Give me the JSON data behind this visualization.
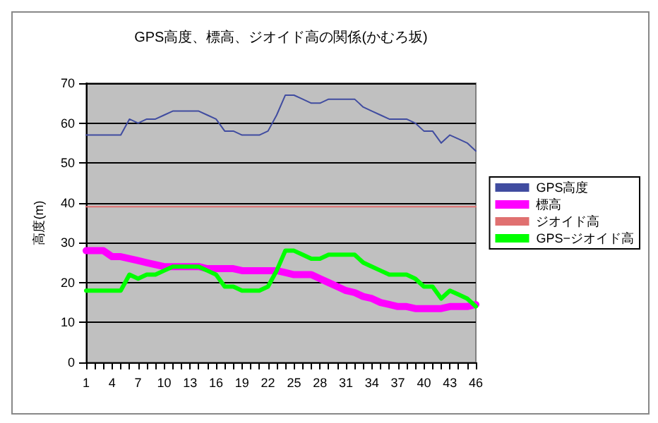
{
  "chart_data": {
    "type": "line",
    "title": "GPS高度、標高、ジオイド高の関係(かむろ坂)",
    "ylabel": "高度(m)",
    "categories": [
      "1",
      null,
      null,
      "4",
      null,
      null,
      "7",
      null,
      null,
      "10",
      null,
      null,
      "13",
      null,
      null,
      "16",
      null,
      null,
      "19",
      null,
      null,
      "22",
      null,
      null,
      "25",
      null,
      null,
      "28",
      null,
      null,
      "31",
      null,
      null,
      "34",
      null,
      null,
      "37",
      null,
      null,
      "40",
      null,
      null,
      "43",
      null,
      null,
      "46"
    ],
    "series": [
      {
        "name": "GPS高度",
        "color": "#404ca0",
        "values": [
          57,
          57,
          57,
          57,
          57,
          61,
          60,
          61,
          61,
          62,
          63,
          63,
          63,
          63,
          62,
          61,
          58,
          58,
          57,
          57,
          57,
          58,
          62,
          67,
          67,
          66,
          65,
          65,
          66,
          66,
          66,
          66,
          64,
          63,
          62,
          61,
          61,
          61,
          60,
          58,
          58,
          55,
          57,
          56,
          55,
          53
        ]
      },
      {
        "name": "標高",
        "color": "#ff00ff",
        "values": [
          28,
          28,
          28,
          26.5,
          26.5,
          26,
          25.5,
          25,
          24.5,
          24,
          24,
          24,
          24,
          24,
          23.5,
          23.5,
          23.5,
          23.5,
          23,
          23,
          23,
          23,
          23,
          22.5,
          22,
          22,
          22,
          21,
          20,
          19,
          18,
          17.5,
          16.5,
          16,
          15,
          14.5,
          14,
          14,
          13.5,
          13.5,
          13.5,
          13.5,
          14,
          14,
          14,
          14.5
        ]
      },
      {
        "name": "ジオイド高",
        "color": "#e07070",
        "values": [
          39,
          39,
          39,
          39,
          39,
          39,
          39,
          39,
          39,
          39,
          39,
          39,
          39,
          39,
          39,
          39,
          39,
          39,
          39,
          39,
          39,
          39,
          39,
          39,
          39,
          39,
          39,
          39,
          39,
          39,
          39,
          39,
          39,
          39,
          39,
          39,
          39,
          39,
          39,
          39,
          39,
          39,
          39,
          39,
          39,
          39
        ]
      },
      {
        "name": "GPS−ジオイド高",
        "color": "#00ff00",
        "values": [
          18,
          18,
          18,
          18,
          18,
          22,
          21,
          22,
          22,
          23,
          24,
          24,
          24,
          24,
          23,
          22,
          19,
          19,
          18,
          18,
          18,
          19,
          23,
          28,
          28,
          27,
          26,
          26,
          27,
          27,
          27,
          27,
          25,
          24,
          23,
          22,
          22,
          22,
          21,
          19,
          19,
          16,
          18,
          17,
          16,
          14
        ]
      }
    ],
    "ylim": [
      0,
      70
    ],
    "yticks": [
      0,
      10,
      20,
      30,
      40,
      50,
      60,
      70
    ],
    "grid": "y",
    "legend": "right",
    "marker": "none",
    "line_style": "solid"
  }
}
